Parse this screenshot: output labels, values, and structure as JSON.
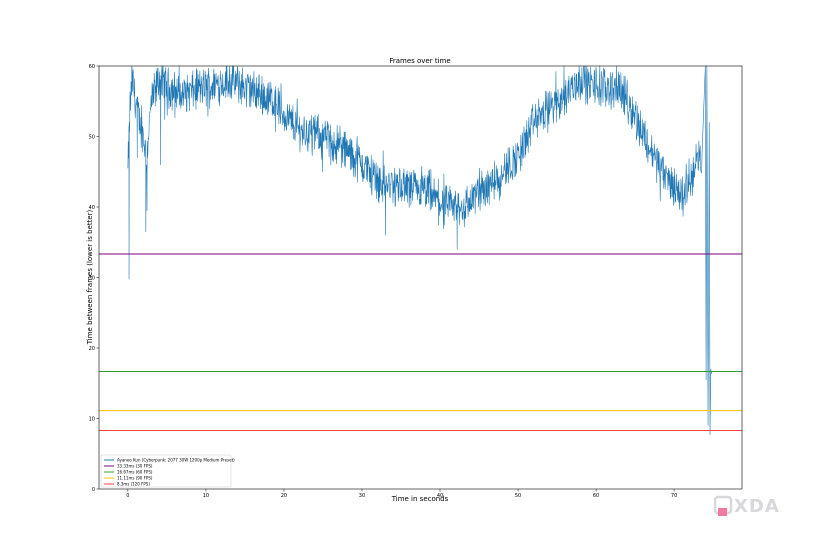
{
  "chart_data": {
    "type": "line",
    "title": "Frames over time",
    "xlabel": "Time in seconds",
    "ylabel": "Time between frames (lower is better)",
    "xlim": [
      -3.7,
      78.7
    ],
    "ylim": [
      0,
      60
    ],
    "xticks": [
      0,
      10,
      20,
      30,
      40,
      50,
      60,
      70
    ],
    "yticks": [
      0,
      10,
      20,
      30,
      40,
      50,
      60
    ],
    "grid": false,
    "legend_position": "lower-left",
    "series": [
      {
        "name": "Ayaneo Kun (Cyberpunk: 2077 30W 1200p Medium Preset)",
        "color": "#1f77b4",
        "profile_x": [
          0,
          0.3,
          0.6,
          1,
          1.5,
          2,
          2.4,
          3,
          4,
          5,
          7,
          10,
          13,
          15,
          17,
          19,
          20,
          22,
          25,
          28,
          31,
          33,
          35,
          38,
          41,
          43,
          45,
          48,
          50,
          52,
          55,
          57,
          58,
          60,
          63,
          65,
          67,
          69,
          71,
          72.5,
          73.2,
          73.7,
          74,
          74.2,
          74.5,
          74.8
        ],
        "profile_y": [
          45,
          55,
          58,
          55,
          52,
          50,
          47,
          55,
          58,
          57,
          56,
          57,
          58,
          57,
          56,
          55,
          53,
          51,
          50,
          48,
          45,
          43,
          43,
          42,
          40,
          40,
          42,
          45,
          47,
          52,
          55,
          57,
          58,
          57,
          57,
          53,
          48,
          44,
          42,
          45,
          47,
          45,
          58,
          55,
          30,
          16
        ],
        "noise_amplitude": 2.5,
        "spikes": [
          {
            "x": 0.15,
            "y": 29.8
          },
          {
            "x": 0.5,
            "y": 60
          },
          {
            "x": 1.2,
            "y": 47
          },
          {
            "x": 2.3,
            "y": 36.5
          },
          {
            "x": 2.45,
            "y": 39.5
          },
          {
            "x": 4.2,
            "y": 46
          },
          {
            "x": 33,
            "y": 36
          },
          {
            "x": 42.2,
            "y": 34
          },
          {
            "x": 74,
            "y": 60
          },
          {
            "x": 74.1,
            "y": 15.5
          },
          {
            "x": 74.2,
            "y": 60
          },
          {
            "x": 74.35,
            "y": 9
          },
          {
            "x": 74.5,
            "y": 52
          },
          {
            "x": 74.6,
            "y": 7.7
          },
          {
            "x": 74.7,
            "y": 17
          },
          {
            "x": 74.8,
            "y": 16.3
          }
        ]
      }
    ],
    "reference_lines": [
      {
        "name": "33.33ms (30 FPS)",
        "y": 33.33,
        "color": "#800080"
      },
      {
        "name": "16.67ms (60 FPS)",
        "y": 16.67,
        "color": "#2ca02c"
      },
      {
        "name": "11.11ms (90 FPS)",
        "y": 11.11,
        "color": "#ffc000"
      },
      {
        "name": "8.3ms (120 FPS)",
        "y": 8.3,
        "color": "#ff4040"
      }
    ]
  },
  "watermark": {
    "text": "XDA",
    "logo_icon": "xda-logo-icon"
  }
}
